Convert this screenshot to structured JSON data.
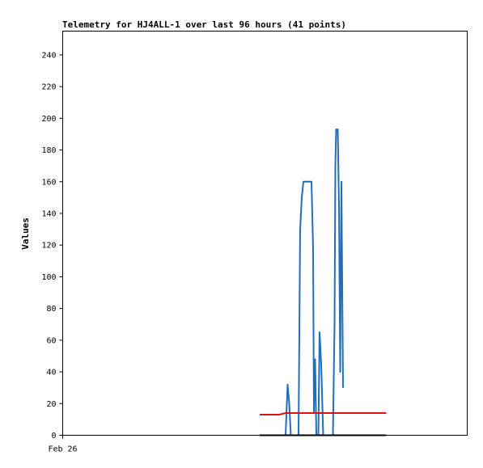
{
  "chart_data": {
    "type": "line",
    "title": "Telemetry for HJ4ALL-1 over last 96 hours (41 points)",
    "xlabel": "",
    "ylabel": "Values",
    "x_tick_labels": [
      "Feb 26"
    ],
    "ylim": [
      0,
      255
    ],
    "y_ticks": [
      0,
      20,
      40,
      60,
      80,
      100,
      120,
      140,
      160,
      180,
      200,
      220,
      240
    ],
    "grid": false,
    "legend": "none",
    "series": [
      {
        "color": "#1f6fbf",
        "points": [
          {
            "t": 0.551,
            "v": 0
          },
          {
            "t": 0.556,
            "v": 32
          },
          {
            "t": 0.56,
            "v": 20
          },
          {
            "t": 0.564,
            "v": 0
          },
          {
            "t": 0.583,
            "v": 0
          },
          {
            "t": 0.587,
            "v": 130
          },
          {
            "t": 0.591,
            "v": 150
          },
          {
            "t": 0.595,
            "v": 160
          },
          {
            "t": 0.615,
            "v": 160
          },
          {
            "t": 0.619,
            "v": 118
          },
          {
            "t": 0.621,
            "v": 15
          },
          {
            "t": 0.624,
            "v": 48
          },
          {
            "t": 0.627,
            "v": 0
          },
          {
            "t": 0.632,
            "v": 0
          },
          {
            "t": 0.635,
            "v": 65
          },
          {
            "t": 0.639,
            "v": 45
          },
          {
            "t": 0.644,
            "v": 0
          },
          {
            "t": 0.668,
            "v": 0
          },
          {
            "t": 0.672,
            "v": 70
          },
          {
            "t": 0.674,
            "v": 170
          },
          {
            "t": 0.676,
            "v": 193
          },
          {
            "t": 0.68,
            "v": 193
          },
          {
            "t": 0.683,
            "v": 145
          },
          {
            "t": 0.686,
            "v": 40
          },
          {
            "t": 0.689,
            "v": 160
          },
          {
            "t": 0.693,
            "v": 30
          }
        ]
      },
      {
        "color": "#e01010",
        "points": [
          {
            "t": 0.487,
            "v": 13
          },
          {
            "t": 0.535,
            "v": 13
          },
          {
            "t": 0.551,
            "v": 14
          },
          {
            "t": 0.8,
            "v": 14
          }
        ]
      },
      {
        "color": "#000000",
        "points": [
          {
            "t": 0.487,
            "v": 0
          },
          {
            "t": 0.8,
            "v": 0
          }
        ]
      }
    ]
  }
}
